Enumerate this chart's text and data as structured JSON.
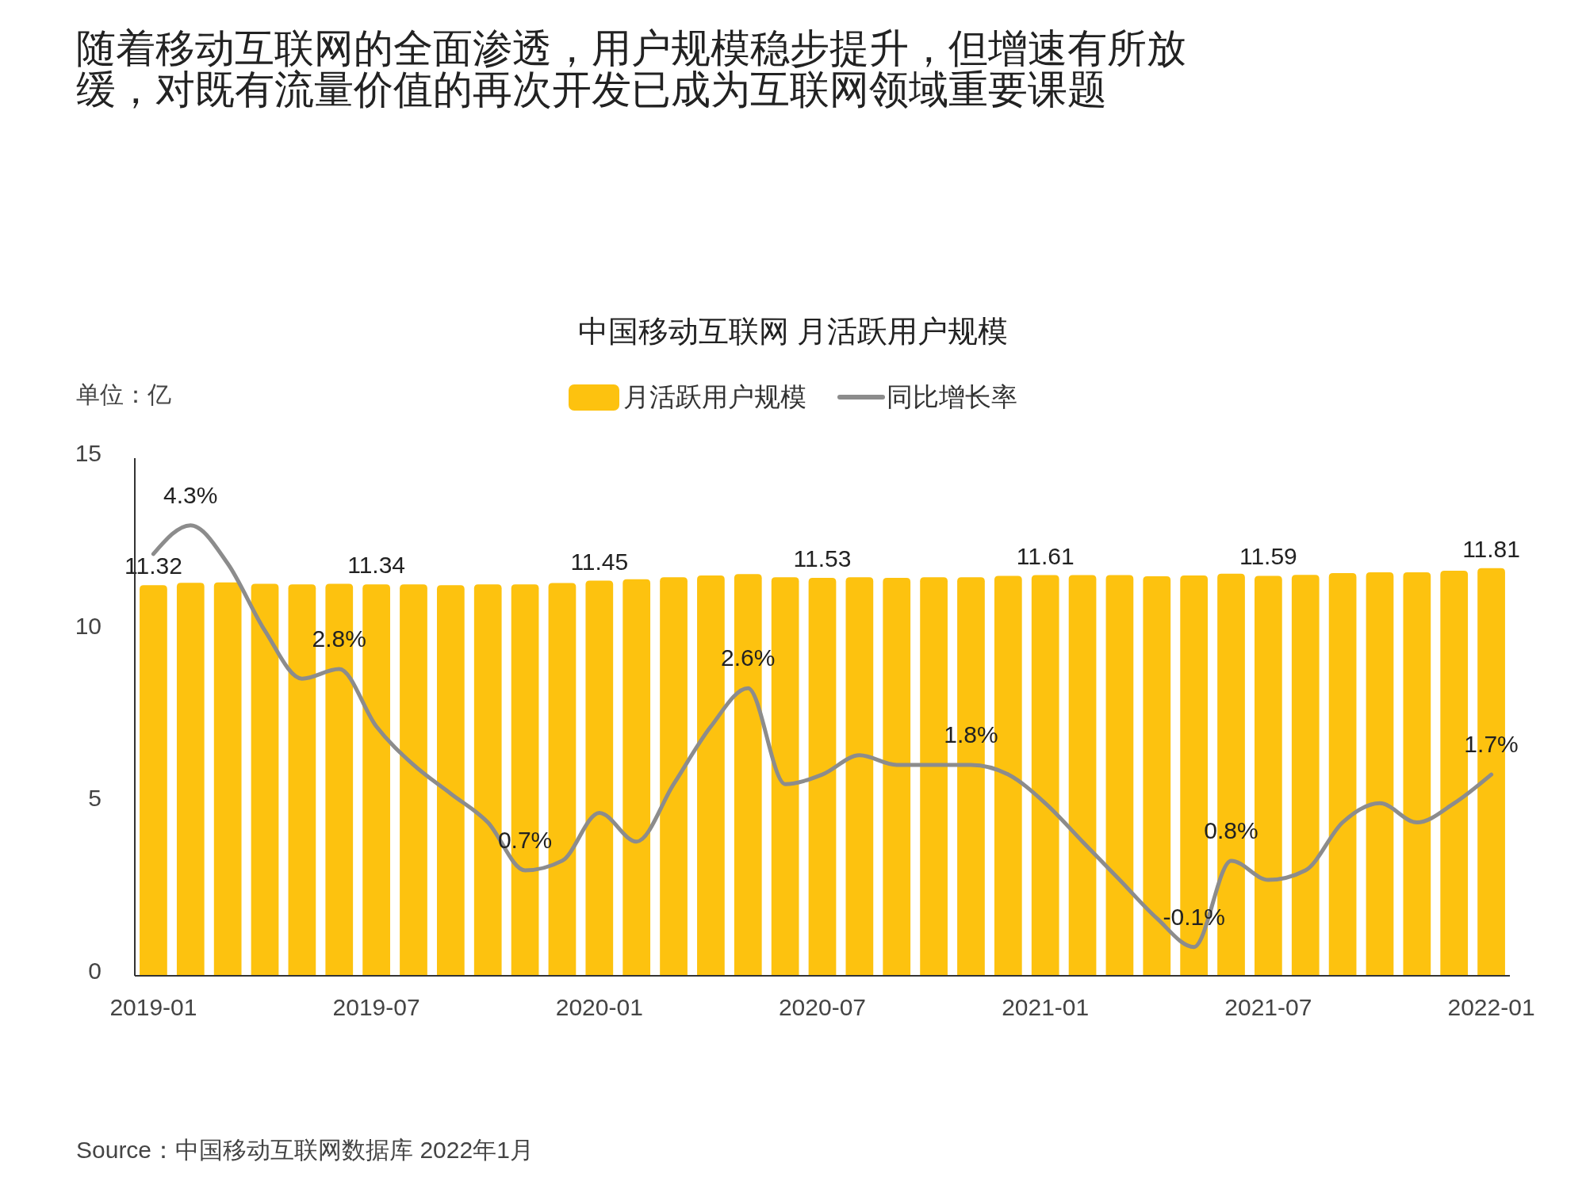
{
  "chart_data": {
    "type": "bar",
    "title": "随着移动互联网的全面渗透，用户规模稳步提升，但增速有所放缓，对既有流量价值的再次开发已成为互联网领域重要课题",
    "subtitle": "中国移动互联网 月活跃用户规模",
    "ylabel": "单位：亿",
    "categories": [
      "2019-01",
      null,
      null,
      null,
      null,
      null,
      "2019-07",
      null,
      null,
      null,
      null,
      null,
      "2020-01",
      null,
      null,
      null,
      null,
      null,
      "2020-07",
      null,
      null,
      null,
      null,
      null,
      "2021-01",
      null,
      null,
      null,
      null,
      null,
      "2021-07",
      null,
      null,
      null,
      null,
      null,
      "2022-01"
    ],
    "series": [
      {
        "name": "月活跃用户规模",
        "color": "#fdc20f",
        "values": [
          11.32,
          11.39,
          11.4,
          11.36,
          11.34,
          11.36,
          11.34,
          11.34,
          11.32,
          11.34,
          11.34,
          11.38,
          11.45,
          11.49,
          11.55,
          11.6,
          11.64,
          11.55,
          11.53,
          11.55,
          11.53,
          11.55,
          11.55,
          11.59,
          11.61,
          11.61,
          11.61,
          11.58,
          11.6,
          11.65,
          11.59,
          11.62,
          11.67,
          11.69,
          11.69,
          11.74,
          11.81
        ],
        "value_labels": [
          "11.32",
          null,
          null,
          null,
          null,
          null,
          "11.34",
          null,
          null,
          null,
          null,
          null,
          "11.45",
          null,
          null,
          null,
          null,
          null,
          "11.53",
          null,
          null,
          null,
          null,
          null,
          "11.61",
          null,
          null,
          null,
          null,
          null,
          "11.59",
          null,
          null,
          null,
          null,
          null,
          "11.81"
        ]
      },
      {
        "name": "同比增长率",
        "type": "line",
        "axis": "y2",
        "color": "#8c8c8c",
        "values": [
          4.0,
          4.3,
          3.9,
          3.2,
          2.7,
          2.8,
          2.2,
          1.8,
          1.5,
          1.2,
          0.7,
          0.8,
          1.3,
          1.0,
          1.6,
          2.2,
          2.6,
          1.6,
          1.7,
          1.9,
          1.8,
          1.8,
          1.8,
          1.7,
          1.4,
          1.0,
          0.6,
          0.2,
          -0.1,
          0.8,
          0.6,
          0.7,
          1.2,
          1.4,
          1.2,
          1.4,
          1.7
        ],
        "value_labels": [
          null,
          "4.3%",
          null,
          null,
          null,
          "2.8%",
          null,
          null,
          null,
          null,
          "0.7%",
          null,
          null,
          null,
          null,
          null,
          "2.6%",
          null,
          null,
          null,
          null,
          null,
          "1.8%",
          null,
          null,
          null,
          null,
          null,
          "-0.1%",
          "0.8%",
          null,
          null,
          null,
          null,
          null,
          null,
          "1.7%"
        ]
      }
    ],
    "ylim": [
      0,
      15
    ],
    "yticks": [
      0,
      5,
      10,
      15
    ],
    "y2lim": [
      -0.4,
      5
    ],
    "legend": "top",
    "annotations": [
      "Source：中国移动互联网数据库 2022年1月"
    ]
  }
}
